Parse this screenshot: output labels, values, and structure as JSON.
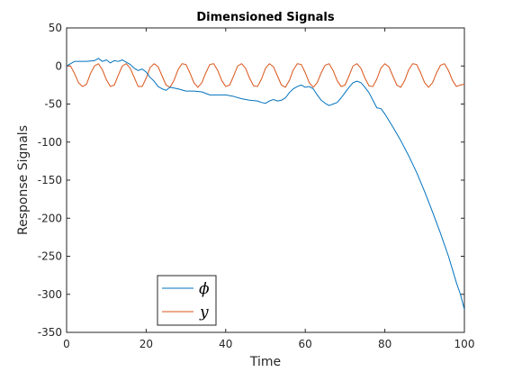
{
  "chart_data": {
    "type": "line",
    "title": "Dimensioned Signals",
    "xlabel": "Time",
    "ylabel": "Response Signals",
    "xlim": [
      0,
      100
    ],
    "ylim": [
      -350,
      50
    ],
    "xticks": [
      0,
      20,
      40,
      60,
      80,
      100
    ],
    "yticks": [
      50,
      0,
      -50,
      -100,
      -150,
      -200,
      -250,
      -300,
      -350
    ],
    "grid": false,
    "legend_position": "bottom-left",
    "series": [
      {
        "name": "ϕ",
        "color": "#0072bd",
        "x": [
          0,
          2,
          5,
          7,
          8,
          9,
          10,
          11,
          12,
          13,
          14,
          15,
          16,
          17,
          18,
          19,
          20,
          21,
          22,
          23,
          24,
          25,
          26,
          28,
          30,
          32,
          34,
          36,
          38,
          40,
          42,
          44,
          46,
          48,
          49,
          50,
          51,
          52,
          53,
          54,
          55,
          56,
          57,
          58,
          59,
          60,
          61,
          62,
          63,
          64,
          65,
          66,
          67,
          68,
          69,
          70,
          71,
          72,
          73,
          74,
          75,
          76,
          77,
          78,
          79,
          80,
          82,
          84,
          86,
          88,
          90,
          92,
          94,
          96,
          98,
          99,
          100
        ],
        "values": [
          0,
          6,
          6,
          7,
          10,
          6,
          8,
          4,
          7,
          6,
          8,
          5,
          2,
          -3,
          -6,
          -4,
          -8,
          -15,
          -20,
          -27,
          -30,
          -32,
          -28,
          -30,
          -33,
          -33,
          -34,
          -38,
          -38,
          -38,
          -40,
          -43,
          -45,
          -46,
          -48,
          -49,
          -46,
          -44,
          -46,
          -45,
          -42,
          -35,
          -30,
          -27,
          -25,
          -28,
          -27,
          -30,
          -38,
          -45,
          -49,
          -52,
          -50,
          -48,
          -42,
          -35,
          -28,
          -22,
          -20,
          -22,
          -28,
          -35,
          -45,
          -55,
          -56,
          -63,
          -80,
          -98,
          -118,
          -140,
          -165,
          -192,
          -220,
          -250,
          -285,
          -300,
          -320
        ]
      },
      {
        "name": "y",
        "color": "#d95319",
        "x": [
          0,
          1,
          2,
          3,
          4,
          5,
          6,
          7,
          8,
          9,
          10,
          11,
          12,
          13,
          14,
          15,
          16,
          17,
          18,
          19,
          20,
          21,
          22,
          23,
          24,
          25,
          26,
          27,
          28,
          29,
          30,
          31,
          32,
          33,
          34,
          35,
          36,
          37,
          38,
          39,
          40,
          41,
          42,
          43,
          44,
          45,
          46,
          47,
          48,
          49,
          50,
          51,
          52,
          53,
          54,
          55,
          56,
          57,
          58,
          59,
          60,
          61,
          62,
          63,
          64,
          65,
          66,
          67,
          68,
          69,
          70,
          71,
          72,
          73,
          74,
          75,
          76,
          77,
          78,
          79,
          80,
          81,
          82,
          83,
          84,
          85,
          86,
          87,
          88,
          89,
          90,
          91,
          92,
          93,
          94,
          95,
          96,
          97,
          98,
          99,
          100
        ],
        "values": [
          0,
          0,
          -10,
          -22,
          -27,
          -24,
          -10,
          0,
          3,
          -5,
          -18,
          -27,
          -25,
          -12,
          0,
          3,
          -3,
          -15,
          -27,
          -27,
          -16,
          -2,
          3,
          -1,
          -13,
          -25,
          -28,
          -19,
          -5,
          3,
          2,
          -9,
          -22,
          -28,
          -22,
          -9,
          2,
          3,
          -6,
          -19,
          -27,
          -25,
          -13,
          0,
          3,
          -3,
          -16,
          -26,
          -27,
          -17,
          -3,
          3,
          -1,
          -13,
          -25,
          -28,
          -19,
          -5,
          3,
          2,
          -9,
          -22,
          -28,
          -22,
          -9,
          1,
          3,
          -6,
          -19,
          -27,
          -25,
          -13,
          0,
          3,
          -3,
          -16,
          -26,
          -27,
          -17,
          -3,
          3,
          -1,
          -13,
          -25,
          -28,
          -19,
          -5,
          3,
          2,
          -9,
          -22,
          -28,
          -22,
          -9,
          1,
          3,
          -6,
          -19,
          -27,
          -25,
          -24
        ]
      }
    ]
  }
}
